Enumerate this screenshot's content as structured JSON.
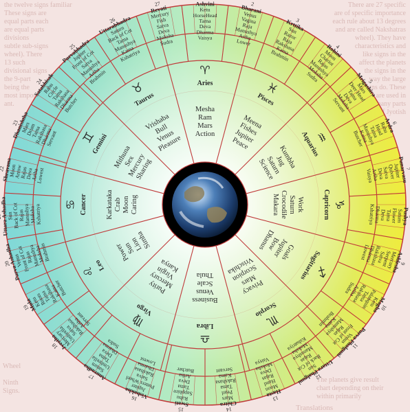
{
  "background_fragments": {
    "top_left": "the twelve signs familiar\nThese signs are\nequal parts each\nare equal parts\ndivisions\nsubtle sub-signs\nwheel). There\n13 such\ndivisional signs\nthe 9-part\nbeing the\nmost import-\nant.",
    "top_right": "There are 27 specific\nare of specific importance\neach rule about 13 degrees\nand are called Nakshatras\nwheel). They have\ncharacteristics and\nlike signs in the\naffect the planets\nthe signs in the\nway the large\nsigns do. These\nare used in\nmany parts\nof Jyotish",
    "bottom_left": "Wheel\n\nNinth\nSigns.",
    "bottom_right": "The planets give result\nchart depending on their\nwithin primarily",
    "bottom_translations": "Translations"
  },
  "colors": {
    "outer_left": "#7fd8d8",
    "inner_center": "#ffffff",
    "outer_right": "#f0ec3c",
    "lines": "#c03a3a",
    "text": "#2a2a2a",
    "hub": "#000000"
  },
  "signs": [
    {
      "name": "Aries",
      "glyph": "♈",
      "words": [
        "Mesha",
        "Ram",
        "Mars",
        "Action"
      ]
    },
    {
      "name": "Pisces",
      "glyph": "♓",
      "words": [
        "Meena",
        "Fishes",
        "Jupiter",
        "Peace"
      ]
    },
    {
      "name": "Aquarius",
      "glyph": "♒",
      "words": [
        "Kumbha",
        "Jug",
        "Saturn",
        "Science"
      ]
    },
    {
      "name": "Capricorn",
      "glyph": "♑",
      "words": [
        "Work",
        "Saturn",
        "Crocodile",
        "Makara"
      ]
    },
    {
      "name": "Sagittarius",
      "glyph": "♐",
      "words": [
        "Goals",
        "Jupiter",
        "Bow",
        "Dhanus"
      ]
    },
    {
      "name": "Scorpio",
      "glyph": "♏",
      "words": [
        "Privacy",
        "Mars",
        "Scorpion",
        "Vrischika"
      ]
    },
    {
      "name": "Libra",
      "glyph": "♎",
      "words": [
        "Business",
        "Venus",
        "Scale",
        "Thula"
      ]
    },
    {
      "name": "Virgo",
      "glyph": "♍",
      "words": [
        "Purity",
        "Mercury",
        "Virgin",
        "Kanya"
      ]
    },
    {
      "name": "Leo",
      "glyph": "♌",
      "words": [
        "Power",
        "Sun",
        "Lion",
        "Simha"
      ]
    },
    {
      "name": "Cancer",
      "glyph": "♋",
      "words": [
        "Karkataka",
        "Crab",
        "Moon",
        "Caring"
      ]
    },
    {
      "name": "Gemini",
      "glyph": "♊",
      "words": [
        "Mithuna",
        "Sex",
        "Mercury",
        "Sharing"
      ]
    },
    {
      "name": "Taurus",
      "glyph": "♉",
      "words": [
        "Vrishaba",
        "Bull",
        "Venus",
        "Pleasure"
      ]
    }
  ],
  "nakshatras": [
    {
      "num": "1",
      "name": "Ashvini",
      "lines": [
        "Ketu",
        "HorseHead",
        "Tama",
        "Deva",
        "Dharma",
        "Vaisya"
      ]
    },
    {
      "num": "27",
      "name": "Revati",
      "lines": [
        "Mercury",
        "Fish",
        "Satva",
        "Deva",
        "Moksha",
        "Sudra"
      ]
    },
    {
      "num": "26",
      "name": "Uttarabhadra",
      "lines": [
        "Saturn",
        "Back of Cot",
        "Tama",
        "Manushya",
        "Kama",
        "Kshatriya"
      ]
    },
    {
      "num": "25",
      "name": "Purvabhadra",
      "lines": [
        "Jupiter",
        "Front of Cot",
        "Satva",
        "Manushya",
        "Artha",
        "Brahmin"
      ]
    },
    {
      "num": "24",
      "name": "Satabhisak",
      "lines": [
        "Rahu",
        "Circle",
        "Tama",
        "Rakshasa",
        "Dharma",
        "Butcher"
      ]
    },
    {
      "num": "23",
      "name": "Dhanishtha",
      "lines": [
        "Mars",
        "Drum",
        "Tama",
        "Rakshasa",
        "Dharma",
        "Servant"
      ]
    },
    {
      "num": "22",
      "name": "Shravana",
      "lines": [
        "Moon",
        "Arrow",
        "Rajas",
        "Deva",
        "Artha",
        "Lowest"
      ]
    },
    {
      "num": "21",
      "name": "Uttara Ashadha",
      "lines": [
        "Sun",
        "Back of Cot",
        "Rajas",
        "Manushya",
        "Moksha",
        "Kshatriya"
      ]
    },
    {
      "num": "20",
      "name": "Purva Ashadha",
      "lines": [
        "Venus",
        "Front of Cot",
        "Rajas",
        "Manushya",
        "Moksha",
        "Brahmin"
      ]
    },
    {
      "num": "19",
      "name": "Mula",
      "lines": [
        "Ketu",
        "Roots",
        "Tama",
        "Rakshasa",
        "Kama",
        "Butcher"
      ]
    },
    {
      "num": "18",
      "name": "Jyestha",
      "lines": [
        "Mercury",
        "Umbrella",
        "Satva",
        "Rakshasa",
        "Artha",
        "Servant"
      ]
    },
    {
      "num": "17",
      "name": "Anuradha",
      "lines": [
        "Saturn",
        "Umbrella",
        "Tama",
        "Deva",
        "Dharma",
        "Sudra"
      ]
    },
    {
      "num": "16",
      "name": "Vishakha",
      "lines": [
        "Jupiter",
        "Potters Wheel",
        "Satva",
        "Rakshasa",
        "Dharma",
        "Lowest"
      ]
    },
    {
      "num": "15",
      "name": "Swati",
      "lines": [
        "Rahu",
        "Sapphire",
        "Tama",
        "Deva",
        "Artha",
        "Butcher"
      ]
    },
    {
      "num": "14",
      "name": "Chitra",
      "lines": [
        "Mars",
        "Pearl",
        "Tama",
        "Rakshasa",
        "Kama",
        "Servant"
      ]
    },
    {
      "num": "13",
      "name": "Hasta",
      "lines": [
        "Moon",
        "Hand",
        "Rajas",
        "Deva",
        "Moksha",
        "Vaisya"
      ]
    },
    {
      "num": "12",
      "name": "Uttara Phalguni",
      "lines": [
        "Sun",
        "Back of Cot",
        "Rajas",
        "Manushya",
        "Moksha",
        "Kshatriya"
      ]
    },
    {
      "num": "11",
      "name": "Purva Phalguni",
      "lines": [
        "Venus",
        "Front of Cot",
        "Rajas",
        "Manushya",
        "Kama",
        "Brahmin"
      ]
    },
    {
      "num": "10",
      "name": "Magha",
      "lines": [
        "Ketu",
        "Palanquin",
        "Tama",
        "Rakshasa",
        "Artha",
        "Sudra"
      ]
    },
    {
      "num": "9",
      "name": "Ashlesha",
      "lines": [
        "Mercury",
        "Serpent",
        "Satva",
        "Rakshasa",
        "Dharma",
        "Lowest"
      ]
    },
    {
      "num": "8",
      "name": "Pushya",
      "lines": [
        "Saturn",
        "Flower",
        "Tama",
        "Deva",
        "Dharma",
        "Kshatriya"
      ]
    },
    {
      "num": "7",
      "name": "Punarvasu",
      "lines": [
        "Jupiter",
        "Quiver",
        "Satva",
        "Deva",
        "Artha",
        "Vaisya"
      ]
    },
    {
      "num": "6",
      "name": "Ardra",
      "lines": [
        "Rahu",
        "Head",
        "Tama",
        "Manushya",
        "Kama",
        "Butcher"
      ]
    },
    {
      "num": "5",
      "name": "Mrigashira",
      "lines": [
        "Mars",
        "Deer Head",
        "Tama",
        "Deva",
        "Moksha",
        "Servant"
      ]
    },
    {
      "num": "4",
      "name": "Rohini",
      "lines": [
        "Moon",
        "Chariot",
        "Rajas",
        "Manushya",
        "Moksha",
        "Sudra"
      ]
    },
    {
      "num": "3",
      "name": "Krttika",
      "lines": [
        "Sun",
        "Razor",
        "Raja",
        "Rakshasa",
        "Kama",
        "Brahmin"
      ]
    },
    {
      "num": "2",
      "name": "Bharani",
      "lines": [
        "Venus",
        "Vagina",
        "Raja",
        "Manushya",
        "Artha",
        "Lower"
      ]
    }
  ]
}
